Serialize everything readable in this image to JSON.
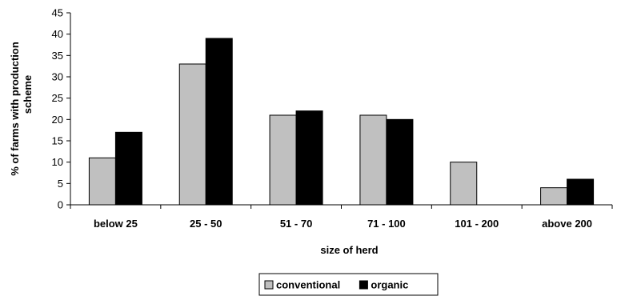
{
  "chart_data": {
    "type": "bar",
    "categories": [
      "below 25",
      "25 - 50",
      "51 - 70",
      "71 - 100",
      "101 - 200",
      "above 200"
    ],
    "series": [
      {
        "name": "conventional",
        "values": [
          11,
          33,
          21,
          21,
          10,
          4
        ],
        "color": "#c0c0c0"
      },
      {
        "name": "organic",
        "values": [
          17,
          39,
          22,
          20,
          0,
          6
        ],
        "color": "#000000"
      }
    ],
    "xlabel": "size of herd",
    "ylabel": "% of farms with production scheme",
    "ylim": [
      0,
      45
    ],
    "yticks": [
      0,
      5,
      10,
      15,
      20,
      25,
      30,
      35,
      40,
      45
    ],
    "grid": false,
    "legend_position": "bottom-center"
  }
}
